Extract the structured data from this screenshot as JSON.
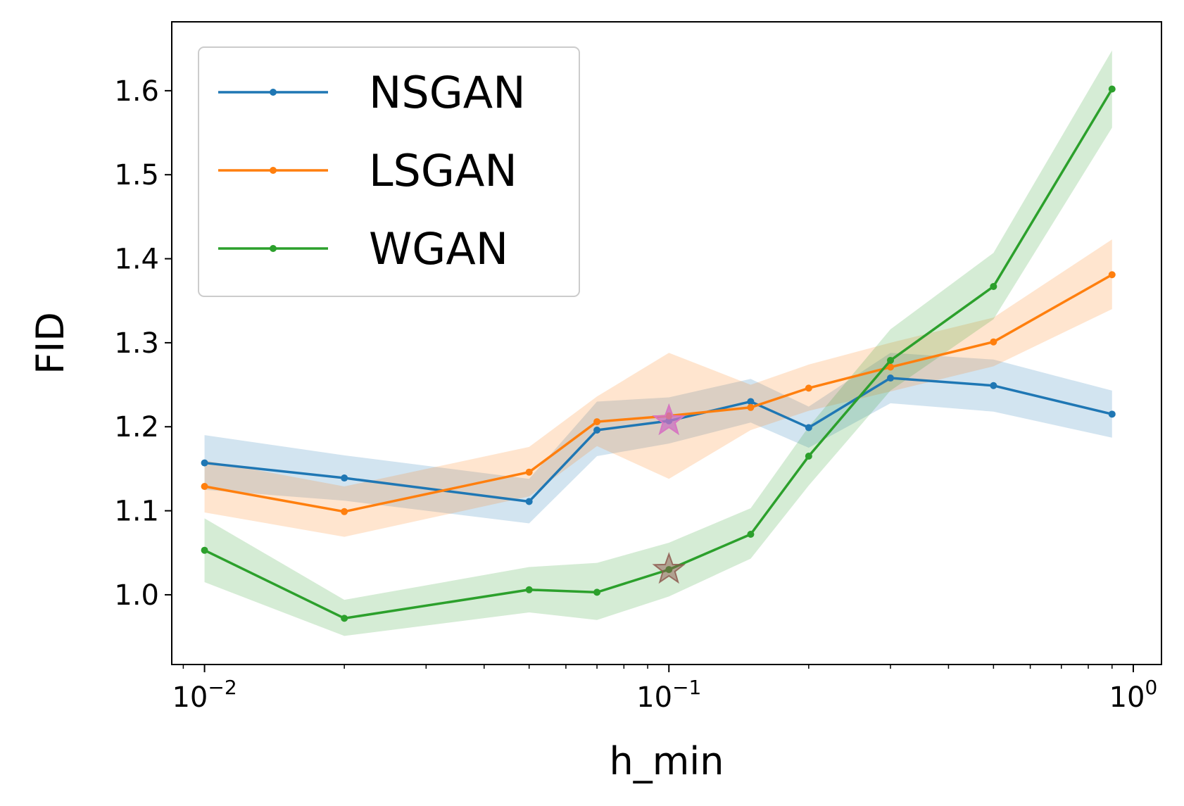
{
  "chart_data": {
    "type": "line",
    "xscale": "log",
    "xlabel": "h_min",
    "ylabel": "FID",
    "xlim": [
      0.0085,
      1.15
    ],
    "ylim": [
      0.917,
      1.682
    ],
    "x_ticks": [
      {
        "value": 0.01,
        "base": "10",
        "exp": "−2"
      },
      {
        "value": 0.1,
        "base": "10",
        "exp": "−1"
      },
      {
        "value": 1,
        "base": "10",
        "exp": "0"
      }
    ],
    "y_ticks": [
      {
        "value": 1.0,
        "label": "1.0"
      },
      {
        "value": 1.1,
        "label": "1.1"
      },
      {
        "value": 1.2,
        "label": "1.2"
      },
      {
        "value": 1.3,
        "label": "1.3"
      },
      {
        "value": 1.4,
        "label": "1.4"
      },
      {
        "value": 1.5,
        "label": "1.5"
      },
      {
        "value": 1.6,
        "label": "1.6"
      }
    ],
    "legend_position": "top-left",
    "x": [
      0.01,
      0.02,
      0.05,
      0.07,
      0.1,
      0.15,
      0.2,
      0.3,
      0.5,
      0.9
    ],
    "series": [
      {
        "name": "NSGAN",
        "color": "#1f77b4",
        "values": [
          1.157,
          1.139,
          1.111,
          1.196,
          1.207,
          1.23,
          1.199,
          1.258,
          1.249,
          1.215
        ],
        "lower": [
          1.125,
          1.112,
          1.085,
          1.165,
          1.18,
          1.205,
          1.175,
          1.228,
          1.218,
          1.187
        ],
        "upper": [
          1.19,
          1.166,
          1.138,
          1.23,
          1.235,
          1.257,
          1.224,
          1.288,
          1.28,
          1.243
        ]
      },
      {
        "name": "LSGAN",
        "color": "#ff7f0e",
        "values": [
          1.129,
          1.099,
          1.146,
          1.206,
          1.213,
          1.223,
          1.246,
          1.271,
          1.301,
          1.381
        ],
        "lower": [
          1.098,
          1.069,
          1.117,
          1.177,
          1.138,
          1.196,
          1.219,
          1.242,
          1.272,
          1.34
        ],
        "upper": [
          1.16,
          1.129,
          1.176,
          1.236,
          1.288,
          1.25,
          1.274,
          1.3,
          1.33,
          1.423
        ]
      },
      {
        "name": "WGAN",
        "color": "#2ca02c",
        "values": [
          1.053,
          0.972,
          1.006,
          1.003,
          1.03,
          1.072,
          1.165,
          1.279,
          1.367,
          1.602
        ],
        "lower": [
          1.015,
          0.951,
          0.979,
          0.97,
          0.998,
          1.043,
          1.13,
          1.243,
          1.328,
          1.556
        ],
        "upper": [
          1.091,
          0.994,
          1.033,
          1.038,
          1.062,
          1.103,
          1.2,
          1.316,
          1.407,
          1.648
        ]
      }
    ],
    "markers": [
      {
        "x": 0.1,
        "y": 1.207,
        "color": "#9467bd"
      },
      {
        "x": 0.1,
        "y": 1.207,
        "color": "#e377c2"
      },
      {
        "x": 0.1,
        "y": 1.03,
        "color": "#8c564b"
      }
    ]
  }
}
